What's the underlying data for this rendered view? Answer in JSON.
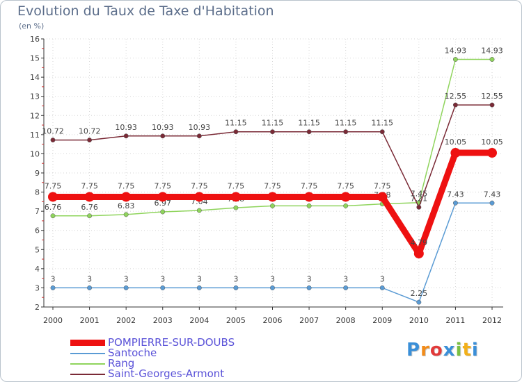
{
  "chart_data": {
    "type": "line",
    "title": "Evolution du Taux de Taxe d'Habitation",
    "subtitle": "(en %)",
    "xlabel": "",
    "ylabel": "",
    "ylim": [
      2,
      16
    ],
    "yticks": [
      2,
      3,
      4,
      5,
      6,
      7,
      8,
      9,
      10,
      11,
      12,
      13,
      14,
      15,
      16
    ],
    "categories": [
      "2000",
      "2001",
      "2002",
      "2003",
      "2004",
      "2005",
      "2006",
      "2007",
      "2008",
      "2009",
      "2010",
      "2011",
      "2012"
    ],
    "series": [
      {
        "name": "Santoche",
        "color": "#5a9bd4",
        "values": [
          3,
          3,
          3,
          3,
          3,
          3,
          3,
          3,
          3,
          3,
          2.25,
          7.43,
          7.43
        ],
        "labels": [
          "3",
          "3",
          "3",
          "3",
          "3",
          "3",
          "3",
          "3",
          "3",
          "3",
          "2.25",
          "7.43",
          "7.43"
        ]
      },
      {
        "name": "Rang",
        "color": "#8fd45c",
        "values": [
          6.76,
          6.76,
          6.83,
          6.97,
          7.04,
          7.18,
          7.28,
          7.28,
          7.28,
          7.38,
          7.45,
          14.93,
          14.93
        ],
        "labels": [
          "6.76",
          "6.76",
          "6.83",
          "6.97",
          "7.04",
          "7.18",
          "7.28",
          "7.28",
          "7.28",
          "7.38",
          "7.45",
          "14.93",
          "14.93"
        ]
      },
      {
        "name": "Saint-Georges-Armont",
        "color": "#7a2a36",
        "values": [
          10.72,
          10.72,
          10.93,
          10.93,
          10.93,
          11.15,
          11.15,
          11.15,
          11.15,
          11.15,
          7.21,
          12.55,
          12.55
        ],
        "labels": [
          "10.72",
          "10.72",
          "10.93",
          "10.93",
          "10.93",
          "11.15",
          "11.15",
          "11.15",
          "11.15",
          "11.15",
          "7.21",
          "12.55",
          "12.55"
        ]
      },
      {
        "name": "POMPIERRE-SUR-DOUBS",
        "color": "#ee1111",
        "values": [
          7.75,
          7.75,
          7.75,
          7.75,
          7.75,
          7.75,
          7.75,
          7.75,
          7.75,
          7.75,
          4.79,
          10.05,
          10.05
        ],
        "labels": [
          "7.75",
          "7.75",
          "7.75",
          "7.75",
          "7.75",
          "7.75",
          "7.75",
          "7.75",
          "7.75",
          "7.75",
          "4.79",
          "10.05",
          "10.05"
        ]
      }
    ],
    "legend": {
      "position": "bottom-left",
      "items": [
        {
          "name": "POMPIERRE-SUR-DOUBS",
          "color": "#ee1111"
        },
        {
          "name": "Santoche",
          "color": "#5a9bd4"
        },
        {
          "name": "Rang",
          "color": "#8fd45c"
        },
        {
          "name": "Saint-Georges-Armont",
          "color": "#7a2a36"
        }
      ]
    }
  },
  "logo": {
    "letters": [
      "P",
      "r",
      "o",
      "x",
      "i",
      "t",
      "i"
    ],
    "colors": [
      "#3a8fd8",
      "#f28c1a",
      "#e23a3a",
      "#3a8fd8",
      "#7ac043",
      "#f2b01a",
      "#3a8fd8"
    ]
  }
}
